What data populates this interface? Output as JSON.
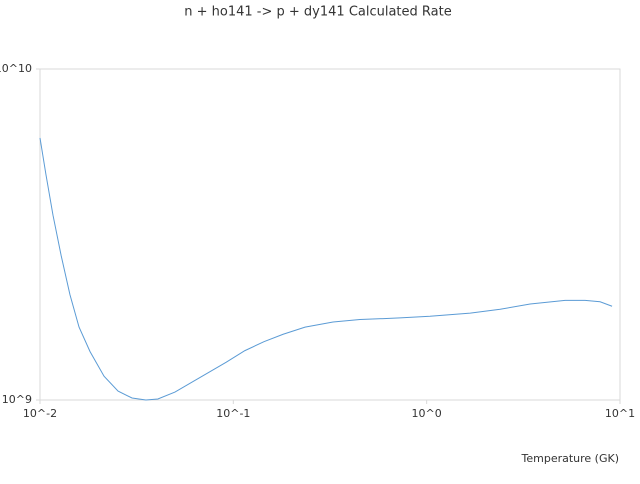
{
  "chart_data": {
    "type": "line",
    "title": "n + ho141 -> p + dy141 Calculated Rate",
    "x_label": "Temperature (GK)",
    "xscale": "log",
    "yscale": "log",
    "xlim": [
      0.01,
      10
    ],
    "ylim": [
      1000000000,
      10000000000
    ],
    "xticks": [
      {
        "value": 0.01,
        "label": "10^-2"
      },
      {
        "value": 0.1,
        "label": "10^-1"
      },
      {
        "value": 1,
        "label": "10^0"
      },
      {
        "value": 10,
        "label": "10^1"
      }
    ],
    "yticks": [
      {
        "value": 1000000000,
        "label": "10^9"
      },
      {
        "value": 10000000000,
        "label": "10^10"
      }
    ],
    "series": [
      {
        "color": "#5b9bd5",
        "x": [
          0.01,
          0.01074,
          0.01167,
          0.01285,
          0.01429,
          0.01592,
          0.01815,
          0.02144,
          0.02533,
          0.02992,
          0.0353,
          0.0407,
          0.0499,
          0.0673,
          0.0917,
          0.1148,
          0.144,
          0.181,
          0.235,
          0.328,
          0.452,
          0.728,
          1.04,
          1.68,
          2.4,
          3.43,
          5.2,
          6.6,
          7.89,
          9.1
        ],
        "values": [
          6190000000,
          4790000000,
          3620000000,
          2740000000,
          2080000000,
          1660000000,
          1400000000,
          1180000000,
          1064000000,
          1014000000,
          1000000000,
          1007000000,
          1057000000,
          1170000000,
          1300000000,
          1410000000,
          1500000000,
          1580000000,
          1660000000,
          1720000000,
          1750000000,
          1770000000,
          1790000000,
          1830000000,
          1880000000,
          1950000000,
          2000000000,
          2000000000,
          1980000000,
          1920000000
        ]
      }
    ]
  }
}
